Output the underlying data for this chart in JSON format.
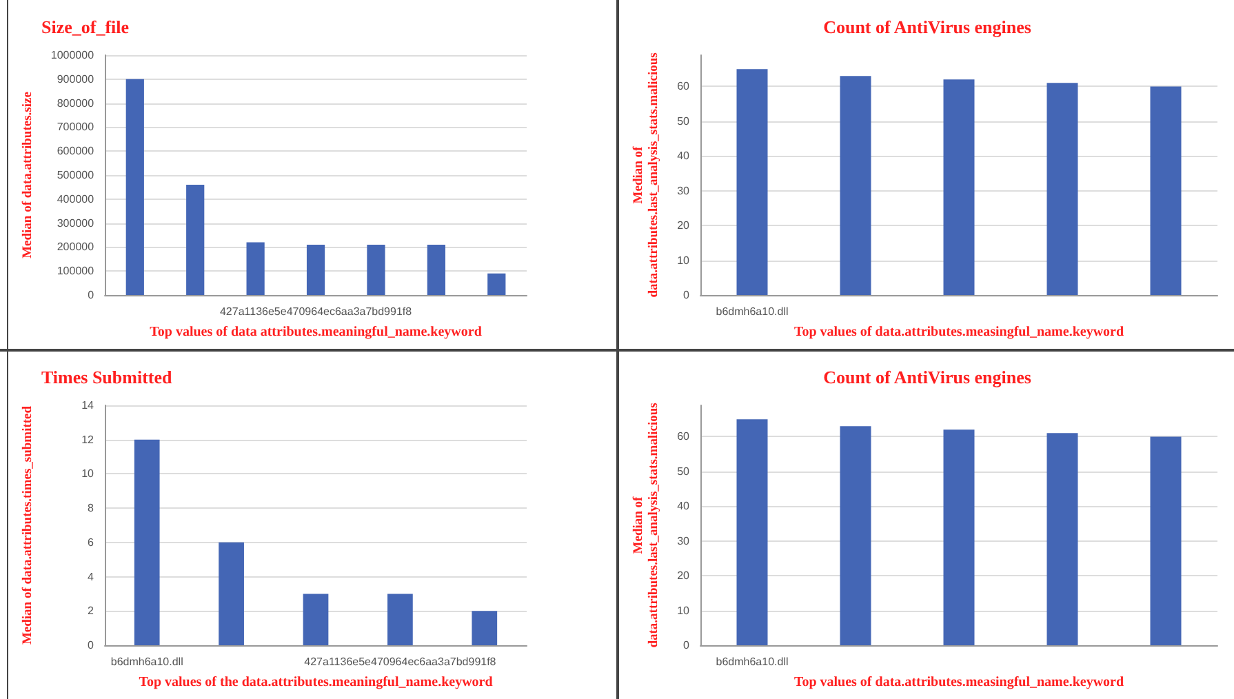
{
  "chart_data": [
    {
      "type": "bar",
      "title": "Size_of_file",
      "xlabel": "Top values of data attributes.meaningful_name.keyword",
      "ylabel": "Median of data.attributes.size",
      "categories": [
        null,
        null,
        null,
        "427a1136e5e470964ec6aa3a7bd991f8",
        null,
        null,
        null
      ],
      "values": [
        900000,
        460000,
        220000,
        210000,
        210000,
        210000,
        90000
      ],
      "color": "#4466b5",
      "ylim": [
        0,
        1000000
      ],
      "yticks": [
        0,
        100000,
        200000,
        300000,
        400000,
        500000,
        600000,
        700000,
        800000,
        900000,
        1000000
      ],
      "grid": "y"
    },
    {
      "type": "bar",
      "title": "Count of AntiVirus engines",
      "xlabel": "Top values of data.attributes.measingful_name.keyword",
      "ylabel": "Median of\ndata.attributes.last_analysis_stats.malicious",
      "categories": [
        "b6dmh6a10.dll",
        null,
        null,
        null,
        null
      ],
      "values": [
        65,
        63,
        62,
        61,
        60
      ],
      "color": "#4466b5",
      "ylim": [
        0,
        69
      ],
      "yticks": [
        0,
        10,
        20,
        30,
        40,
        50,
        60
      ],
      "grid": "y"
    },
    {
      "type": "bar",
      "title": "Times Submitted",
      "xlabel": "Top values of the data.attributes.meaningful_name.keyword",
      "ylabel": "Median of data.attributes.times_submitted",
      "categories": [
        "b6dmh6a10.dll",
        null,
        null,
        "427a1136e5e470964ec6aa3a7bd991f8",
        null
      ],
      "values": [
        12,
        6,
        3,
        3,
        2
      ],
      "color": "#4466b5",
      "ylim": [
        0,
        14
      ],
      "yticks": [
        0,
        2,
        4,
        6,
        8,
        10,
        12,
        14
      ],
      "grid": "y"
    },
    {
      "type": "bar",
      "title": "Count of AntiVirus engines",
      "xlabel": "Top values of data.attributes.measingful_name.keyword",
      "ylabel": "Median of\ndata.attributes.last_analysis_stats.malicious",
      "categories": [
        "b6dmh6a10.dll",
        null,
        null,
        null,
        null
      ],
      "values": [
        65,
        63,
        62,
        61,
        60
      ],
      "color": "#4466b5",
      "ylim": [
        0,
        69
      ],
      "yticks": [
        0,
        10,
        20,
        30,
        40,
        50,
        60
      ],
      "grid": "y"
    }
  ]
}
